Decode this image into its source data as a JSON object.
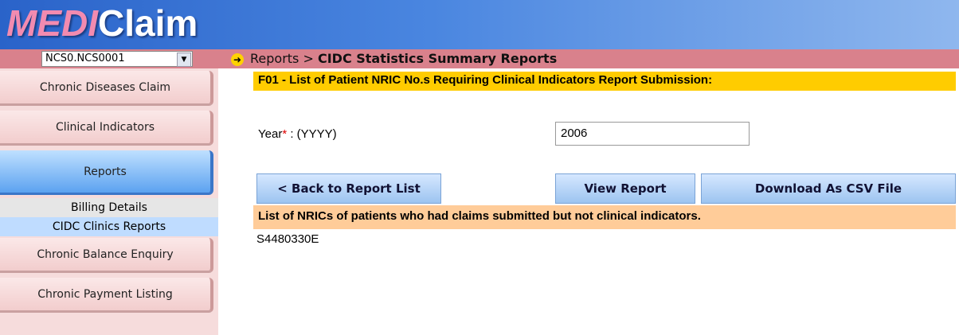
{
  "header": {
    "logo_part1": "MEDI",
    "logo_part2": "Claim",
    "account": "NCS0.NCS0001",
    "breadcrumb_parent": "Reports >",
    "breadcrumb_current": "CIDC Statistics Summary Reports"
  },
  "sidebar": {
    "items": [
      "Chronic Diseases Claim",
      "Clinical Indicators",
      "Reports"
    ],
    "subitems": [
      "Billing Details",
      "CIDC Clinics Reports"
    ],
    "items_after": [
      "Chronic Balance Enquiry",
      "Chronic Payment Listing"
    ]
  },
  "report": {
    "title": "F01 - List of Patient NRIC No.s Requiring Clinical Indicators Report Submission:",
    "year_label": "Year",
    "required_mark": "*",
    "year_format": ": (YYYY)",
    "year_value": "2006",
    "buttons": [
      "< Back to Report List",
      "View Report",
      "Download As CSV File"
    ],
    "result_heading": "List of NRICs of patients who had claims submitted but not clinical indicators.",
    "rows": [
      "S4480330E"
    ]
  }
}
